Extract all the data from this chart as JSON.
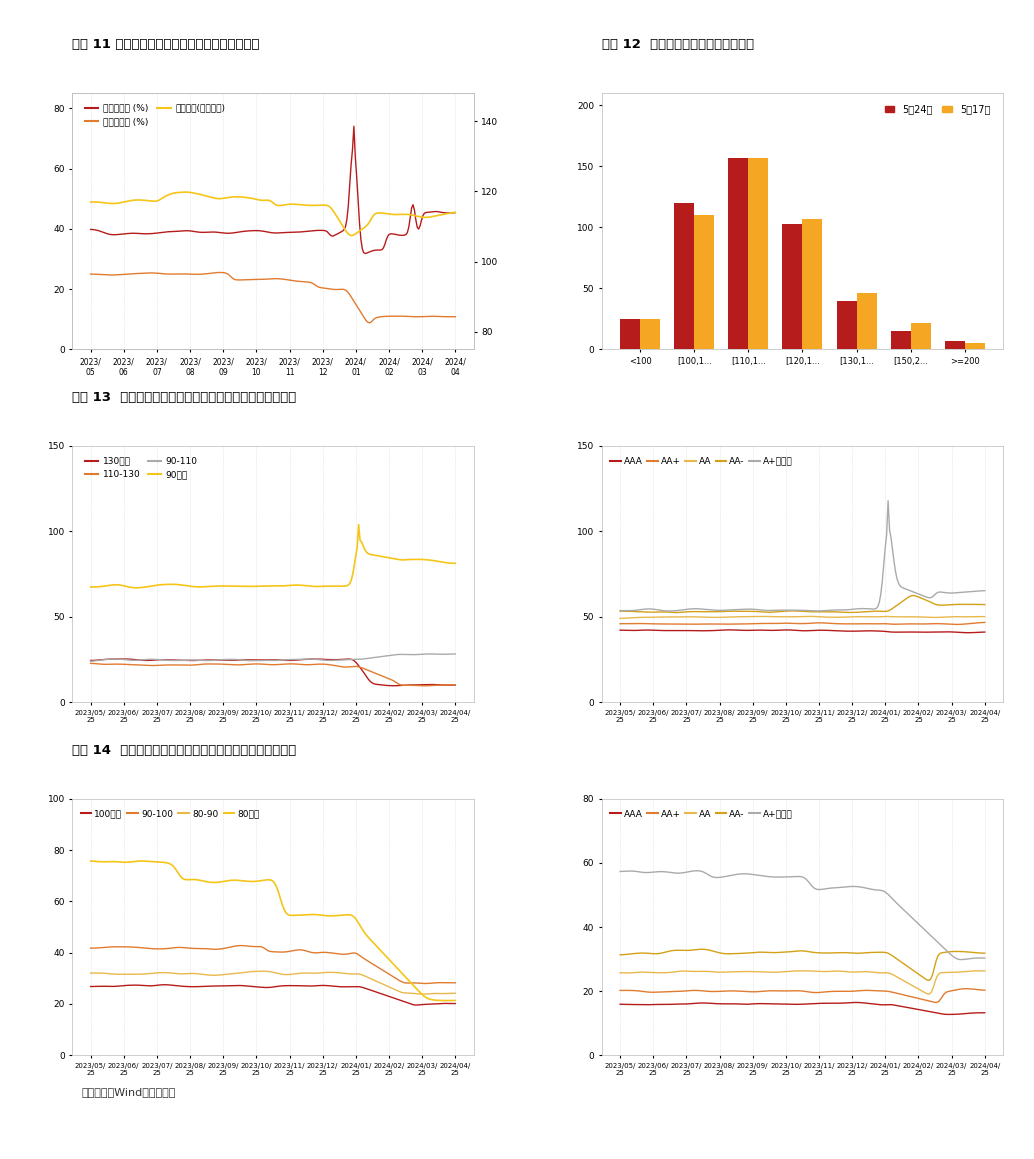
{
  "title11": "图表 11 转债价格、转股溢价率和纯债溢价率中枢",
  "title12": "图表 12  转债个券价格分布区间（支）",
  "title13": "图表 13  转股溢价率算数平均值（按转换价值和信用等级）",
  "title14": "图表 14  纯债溢价率算数平均值（按纯债价值和信用等级）",
  "footnote": "数据来源：Wind，东方金诚",
  "chart12_categories": [
    "<100",
    "[100,1...",
    "[110,1...",
    "[120,1...",
    "[130,1...",
    "[150,2...",
    ">=200"
  ],
  "chart12_may24": [
    25,
    120,
    157,
    103,
    40,
    15,
    7
  ],
  "chart12_may17": [
    25,
    110,
    157,
    107,
    46,
    22,
    5
  ],
  "chart12_color_may24": "#b71c1c",
  "chart12_color_may17": "#f5a623",
  "legend11_labels": [
    "转股溢价率 (%)",
    "纯债溢价率 (%)",
    "转债价格(元，右轴)"
  ],
  "legend13a_labels": [
    "130以上",
    "110-130",
    "90-110",
    "90以下"
  ],
  "legend13b_labels": [
    "AAA",
    "AA+",
    "AA",
    "AA-",
    "A+及以下"
  ],
  "legend14a_labels": [
    "100以上",
    "90-100",
    "80-90",
    "80以下"
  ],
  "legend14b_labels": [
    "AAA",
    "AA+",
    "AA",
    "AA-",
    "A+及以下"
  ],
  "color_dark_red": "#b71c1c",
  "color_orange": "#e07b30",
  "color_yellow_gold": "#e8b84b",
  "color_yellow": "#f5c518",
  "color_gray": "#aaaaaa",
  "color_mid_gold": "#d4a017",
  "bg_color": "#ffffff",
  "plot_bg": "#ffffff"
}
